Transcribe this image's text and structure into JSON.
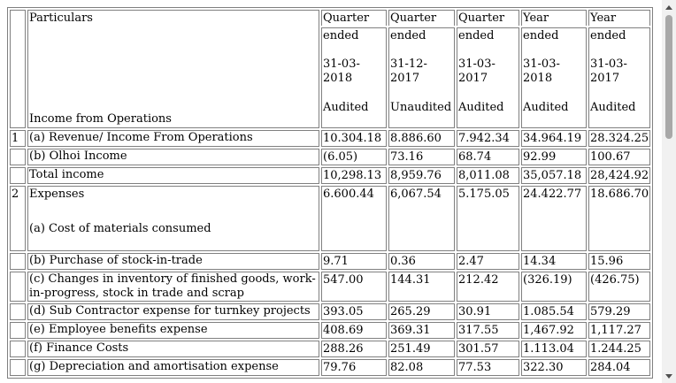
{
  "header": {
    "particulars": "Particulars",
    "columns": [
      {
        "l1": "Quarter",
        "l2": "ended",
        "date": "31-03-2018",
        "status": "Audited"
      },
      {
        "l1": "Quarter",
        "l2": "ended",
        "date": "31-12-2017",
        "status": "Unaudited"
      },
      {
        "l1": "Quarter",
        "l2": "ended",
        "date": "31-03-2017",
        "status": "Audited"
      },
      {
        "l1": "Year",
        "l2": "ended",
        "date": "31-03-2018",
        "status": "Audited"
      },
      {
        "l1": "Year",
        "l2": "ended",
        "date": "31-03-2017",
        "status": "Audited"
      }
    ],
    "section_label": "Income from Operations"
  },
  "rows": [
    {
      "no": "1",
      "label": "(a) Revenue/ Income From Operations",
      "values": [
        "10.304.18",
        "8.886.60",
        "7.942.34",
        "34.964.19",
        "28.324.25"
      ]
    },
    {
      "no": "",
      "label": "(b) Olhoi Income",
      "values": [
        "(6.05)",
        "73.16",
        "68.74",
        "92.99",
        "100.67"
      ]
    },
    {
      "no": "",
      "label": "Total income",
      "values": [
        "10,298.13",
        "8,959.76",
        "8,011.08",
        "35,057.18",
        "28,424.92"
      ]
    },
    {
      "no": "2",
      "label_top": "Expenses",
      "label": "(a) Cost of materials consumed",
      "values": [
        "6.600.44",
        "6,067.54",
        "5.175.05",
        "24.422.77",
        "18.686.70"
      ]
    },
    {
      "no": "",
      "label": "(b) Purchase of stock-in-trade",
      "values": [
        "9.71",
        "0.36",
        "2.47",
        "14.34",
        "15.96"
      ]
    },
    {
      "no": "",
      "label": "(c) Changes in inventory of finished goods, work-in-progress, stock in trade and scrap",
      "values": [
        "547.00",
        "144.31",
        "212.42",
        "(326.19)",
        "(426.75)"
      ]
    },
    {
      "no": "",
      "label": "(d) Sub Contractor expense for turnkey projects",
      "values": [
        "393.05",
        "265.29",
        "30.91",
        "1.085.54",
        "579.29"
      ]
    },
    {
      "no": "",
      "label": "(e) Employee benefits expense",
      "values": [
        "408.69",
        "369.31",
        "317.55",
        "1,467.92",
        "1,117.27"
      ]
    },
    {
      "no": "",
      "label": "(f) Finance Costs",
      "values": [
        "288.26",
        "251.49",
        "301.57",
        "1.113.04",
        "1.244.25"
      ]
    },
    {
      "no": "",
      "label": "(g) Depreciation and amortisation expense",
      "values": [
        "79.76",
        "82.08",
        "77.53",
        "322.30",
        "284.04"
      ]
    }
  ]
}
